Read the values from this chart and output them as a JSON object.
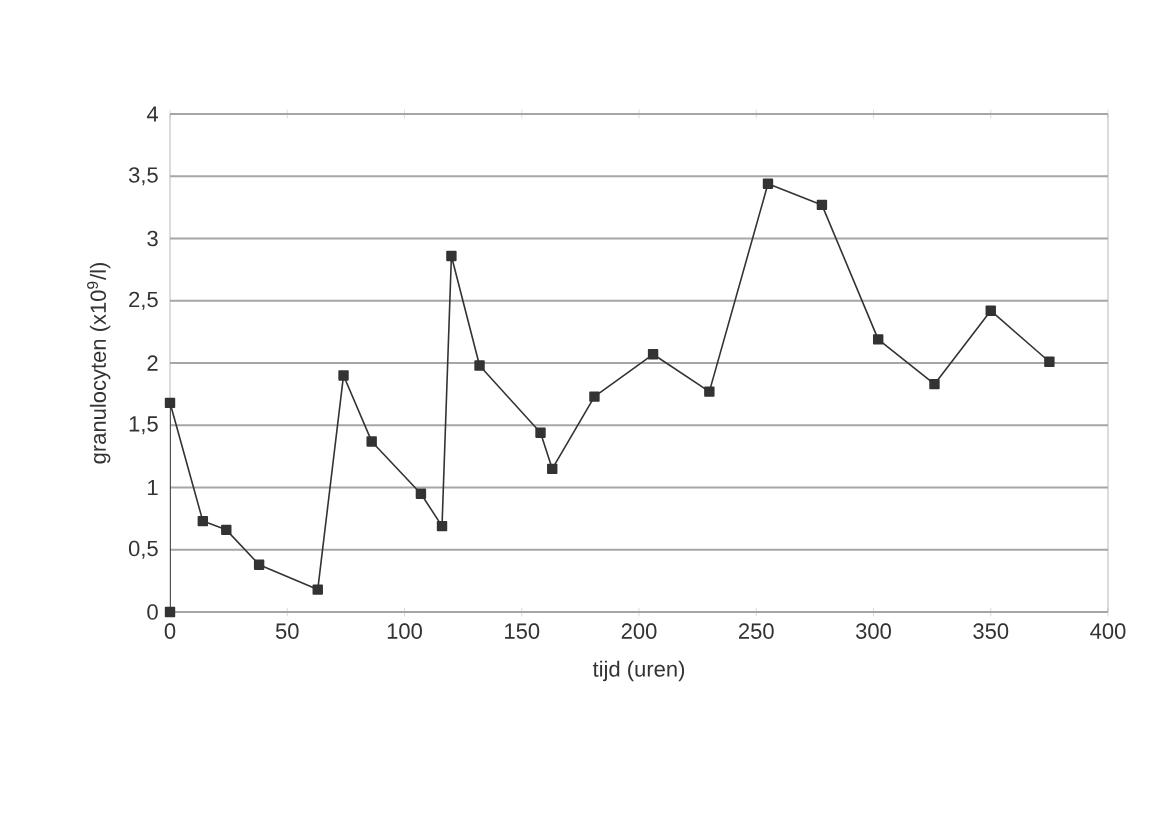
{
  "chart_data": {
    "type": "line",
    "xlabel": "tijd (uren)",
    "ylabel": "granulocyten (x10$^{9}$/l)",
    "x": [
      0,
      0,
      14,
      24,
      38,
      63,
      74,
      86,
      107,
      116,
      120,
      132,
      158,
      163,
      181,
      206,
      230,
      255,
      278,
      302,
      326,
      350,
      375
    ],
    "values": [
      0,
      1.68,
      0.73,
      0.66,
      0.38,
      0.18,
      1.9,
      1.37,
      0.95,
      0.69,
      2.86,
      1.98,
      1.44,
      1.15,
      1.73,
      2.07,
      1.77,
      3.44,
      3.27,
      2.19,
      1.83,
      2.42,
      2.01
    ],
    "color": "#333333",
    "marker": "square",
    "grid": "y",
    "xlim": [
      0,
      400
    ],
    "xticks": [
      0,
      50,
      100,
      150,
      200,
      250,
      300,
      350,
      400
    ],
    "ylim": [
      0,
      4
    ],
    "yticks": [
      0,
      {
        "value": 0.5,
        "label": "0,5"
      },
      1,
      {
        "value": 1.5,
        "label": "1,5"
      },
      2,
      {
        "value": 2.5,
        "label": "2,5"
      },
      3,
      {
        "value": 3.5,
        "label": "3,5"
      },
      4
    ]
  }
}
